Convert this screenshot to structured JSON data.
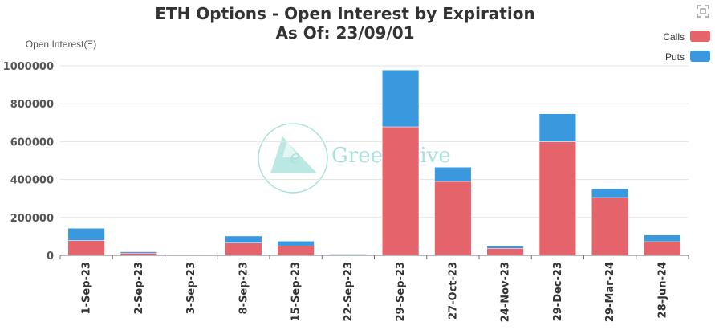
{
  "chart_data": {
    "type": "bar",
    "stacked": true,
    "title": "ETH Options - Open Interest by Expiration",
    "subtitle": "As Of: 23/09/01",
    "ylabel": "Open Interest(Ξ)",
    "xlabel": "",
    "ylim": [
      0,
      1000000
    ],
    "yticks": [
      0,
      200000,
      400000,
      600000,
      800000,
      1000000
    ],
    "grid": true,
    "legend_position": "top-right",
    "categories": [
      "1-Sep-23",
      "2-Sep-23",
      "3-Sep-23",
      "8-Sep-23",
      "15-Sep-23",
      "22-Sep-23",
      "29-Sep-23",
      "27-Oct-23",
      "24-Nov-23",
      "29-Dec-23",
      "29-Mar-24",
      "28-Jun-24"
    ],
    "series": [
      {
        "name": "Calls",
        "color": "#e5636b",
        "values": [
          78000,
          12000,
          1500,
          65000,
          50000,
          4000,
          678000,
          390000,
          37000,
          600000,
          305000,
          72000
        ]
      },
      {
        "name": "Puts",
        "color": "#3a98df",
        "values": [
          65000,
          7000,
          1000,
          37000,
          25000,
          3000,
          300000,
          75000,
          13000,
          147000,
          47000,
          35000
        ]
      }
    ]
  },
  "watermark": {
    "logo_letter": "e",
    "text": "GreeksLive"
  },
  "toolbox": {
    "icon": "fullscreen-icon"
  }
}
